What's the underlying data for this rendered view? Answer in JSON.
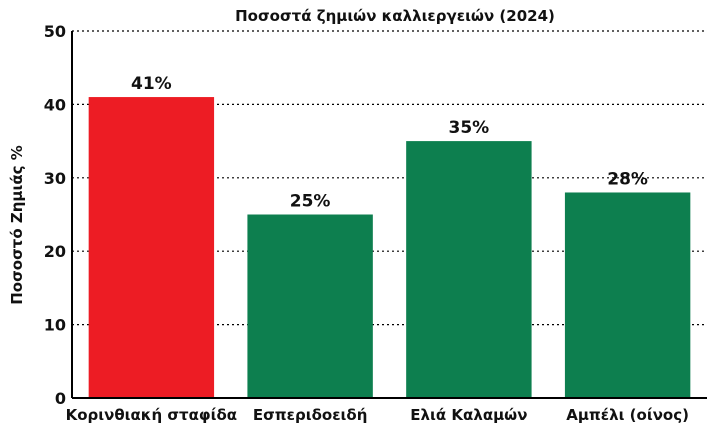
{
  "chart_data": {
    "type": "bar",
    "title": "Ποσοστά ζημιών καλλιεργειών (2024)",
    "xlabel": "",
    "ylabel": "Ποσοστό Ζημιάς %",
    "categories": [
      "Κορινθιακή σταφίδα",
      "Εσπεριδοειδή",
      "Ελιά Καλαμών",
      "Αμπέλι (οίνος)"
    ],
    "values": [
      41,
      25,
      35,
      28
    ],
    "value_labels": [
      "41%",
      "25%",
      "35%",
      "28%"
    ],
    "colors": [
      "#ed1c24",
      "#0d7f4f",
      "#0d7f4f",
      "#0d7f4f"
    ],
    "ylim": [
      0,
      50
    ],
    "yticks": [
      0,
      10,
      20,
      30,
      40,
      50
    ],
    "grid": true,
    "legend": "none"
  }
}
